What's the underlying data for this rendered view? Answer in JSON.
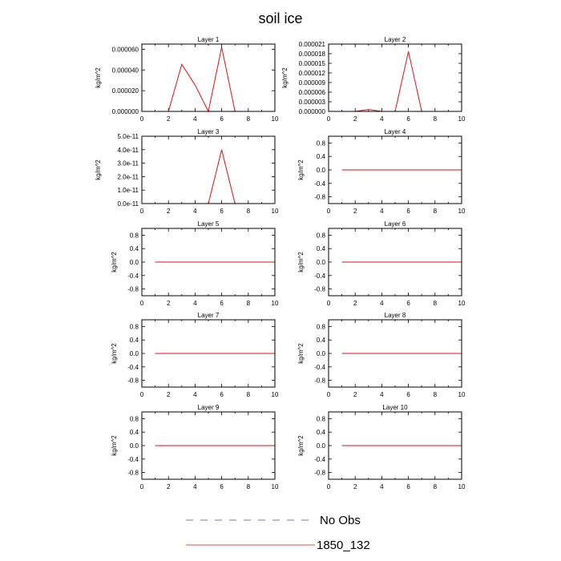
{
  "title": "soil ice",
  "chart_data": [
    {
      "type": "line",
      "title": "Layer 1",
      "ylabel": "kg/m^2",
      "xlim": [
        0,
        10
      ],
      "ylim": [
        0,
        6.5e-05
      ],
      "xticks": [
        "0",
        "2",
        "4",
        "6",
        "8",
        "10"
      ],
      "yticks": [
        {
          "value": 0,
          "label": "0.000000"
        },
        {
          "value": 2e-05,
          "label": "0.000020"
        },
        {
          "value": 4e-05,
          "label": "0.000040"
        },
        {
          "value": 6e-05,
          "label": "0.000060"
        }
      ],
      "series": [
        {
          "name": "1850_132",
          "x": [
            1,
            2,
            3,
            4,
            5,
            6,
            7,
            8,
            9,
            10
          ],
          "values": [
            0,
            0,
            4.55e-05,
            2.55e-05,
            0,
            6.2e-05,
            0,
            0,
            0,
            0
          ]
        }
      ]
    },
    {
      "type": "line",
      "title": "Layer 2",
      "ylabel": "kg/m^2",
      "xlim": [
        0,
        10
      ],
      "ylim": [
        0,
        2.1e-05
      ],
      "xticks": [
        "0",
        "2",
        "4",
        "6",
        "8",
        "10"
      ],
      "yticks": [
        {
          "value": 0,
          "label": "0.000000"
        },
        {
          "value": 3e-06,
          "label": "0.000003"
        },
        {
          "value": 6e-06,
          "label": "0.000006"
        },
        {
          "value": 9e-06,
          "label": "0.000009"
        },
        {
          "value": 1.2e-05,
          "label": "0.000012"
        },
        {
          "value": 1.5e-05,
          "label": "0.000015"
        },
        {
          "value": 1.8e-05,
          "label": "0.000018"
        },
        {
          "value": 2.1e-05,
          "label": "0.000021"
        }
      ],
      "series": [
        {
          "name": "1850_132",
          "x": [
            1,
            2,
            3,
            4,
            5,
            6,
            7,
            8,
            9,
            10
          ],
          "values": [
            0,
            0,
            6e-07,
            0,
            0,
            1.87e-05,
            0,
            0,
            0,
            0
          ]
        }
      ]
    },
    {
      "type": "line",
      "title": "Layer 3",
      "ylabel": "kg/m^2",
      "xlim": [
        0,
        10
      ],
      "ylim": [
        0,
        5e-11
      ],
      "xticks": [
        "0",
        "2",
        "4",
        "6",
        "8",
        "10"
      ],
      "yticks": [
        {
          "value": 0,
          "label": "0.0e-11"
        },
        {
          "value": 1e-11,
          "label": "1.0e-11"
        },
        {
          "value": 2e-11,
          "label": "2.0e-11"
        },
        {
          "value": 3e-11,
          "label": "3.0e-11"
        },
        {
          "value": 4e-11,
          "label": "4.0e-11"
        },
        {
          "value": 5e-11,
          "label": "5.0e-11"
        }
      ],
      "series": [
        {
          "name": "1850_132",
          "x": [
            1,
            2,
            3,
            4,
            5,
            6,
            7,
            8,
            9,
            10
          ],
          "values": [
            0,
            0,
            0,
            0,
            0,
            4e-11,
            0,
            0,
            0,
            0
          ]
        }
      ]
    },
    {
      "type": "line",
      "title": "Layer 4",
      "ylabel": "kg/m^2",
      "xlim": [
        0,
        10
      ],
      "ylim": [
        -1,
        1
      ],
      "xticks": [
        "0",
        "2",
        "4",
        "6",
        "8",
        "10"
      ],
      "yticks": [
        {
          "value": -0.8,
          "label": "-0.8"
        },
        {
          "value": -0.4,
          "label": "-0.4"
        },
        {
          "value": 0,
          "label": "0.0"
        },
        {
          "value": 0.4,
          "label": "0.4"
        },
        {
          "value": 0.8,
          "label": "0.8"
        }
      ],
      "series": [
        {
          "name": "1850_132",
          "x": [
            1,
            2,
            3,
            4,
            5,
            6,
            7,
            8,
            9,
            10
          ],
          "values": [
            0,
            0,
            0,
            0,
            0,
            0,
            0,
            0,
            0,
            0
          ]
        }
      ]
    },
    {
      "type": "line",
      "title": "Layer 5",
      "ylabel": "kg/m^2",
      "xlim": [
        0,
        10
      ],
      "ylim": [
        -1,
        1
      ],
      "xticks": [
        "0",
        "2",
        "4",
        "6",
        "8",
        "10"
      ],
      "yticks": [
        {
          "value": -0.8,
          "label": "-0.8"
        },
        {
          "value": -0.4,
          "label": "-0.4"
        },
        {
          "value": 0,
          "label": "0.0"
        },
        {
          "value": 0.4,
          "label": "0.4"
        },
        {
          "value": 0.8,
          "label": "0.8"
        }
      ],
      "series": [
        {
          "name": "1850_132",
          "x": [
            1,
            2,
            3,
            4,
            5,
            6,
            7,
            8,
            9,
            10
          ],
          "values": [
            0,
            0,
            0,
            0,
            0,
            0,
            0,
            0,
            0,
            0
          ]
        }
      ]
    },
    {
      "type": "line",
      "title": "Layer 6",
      "ylabel": "kg/m^2",
      "xlim": [
        0,
        10
      ],
      "ylim": [
        -1,
        1
      ],
      "xticks": [
        "0",
        "2",
        "4",
        "6",
        "8",
        "10"
      ],
      "yticks": [
        {
          "value": -0.8,
          "label": "-0.8"
        },
        {
          "value": -0.4,
          "label": "-0.4"
        },
        {
          "value": 0,
          "label": "0.0"
        },
        {
          "value": 0.4,
          "label": "0.4"
        },
        {
          "value": 0.8,
          "label": "0.8"
        }
      ],
      "series": [
        {
          "name": "1850_132",
          "x": [
            1,
            2,
            3,
            4,
            5,
            6,
            7,
            8,
            9,
            10
          ],
          "values": [
            0,
            0,
            0,
            0,
            0,
            0,
            0,
            0,
            0,
            0
          ]
        }
      ]
    },
    {
      "type": "line",
      "title": "Layer 7",
      "ylabel": "kg/m^2",
      "xlim": [
        0,
        10
      ],
      "ylim": [
        -1,
        1
      ],
      "xticks": [
        "0",
        "2",
        "4",
        "6",
        "8",
        "10"
      ],
      "yticks": [
        {
          "value": -0.8,
          "label": "-0.8"
        },
        {
          "value": -0.4,
          "label": "-0.4"
        },
        {
          "value": 0,
          "label": "0.0"
        },
        {
          "value": 0.4,
          "label": "0.4"
        },
        {
          "value": 0.8,
          "label": "0.8"
        }
      ],
      "series": [
        {
          "name": "1850_132",
          "x": [
            1,
            2,
            3,
            4,
            5,
            6,
            7,
            8,
            9,
            10
          ],
          "values": [
            0,
            0,
            0,
            0,
            0,
            0,
            0,
            0,
            0,
            0
          ]
        }
      ]
    },
    {
      "type": "line",
      "title": "Layer 8",
      "ylabel": "kg/m^2",
      "xlim": [
        0,
        10
      ],
      "ylim": [
        -1,
        1
      ],
      "xticks": [
        "0",
        "2",
        "4",
        "6",
        "8",
        "10"
      ],
      "yticks": [
        {
          "value": -0.8,
          "label": "-0.8"
        },
        {
          "value": -0.4,
          "label": "-0.4"
        },
        {
          "value": 0,
          "label": "0.0"
        },
        {
          "value": 0.4,
          "label": "0.4"
        },
        {
          "value": 0.8,
          "label": "0.8"
        }
      ],
      "series": [
        {
          "name": "1850_132",
          "x": [
            1,
            2,
            3,
            4,
            5,
            6,
            7,
            8,
            9,
            10
          ],
          "values": [
            0,
            0,
            0,
            0,
            0,
            0,
            0,
            0,
            0,
            0
          ]
        }
      ]
    },
    {
      "type": "line",
      "title": "Layer 9",
      "ylabel": "kg/m^2",
      "xlim": [
        0,
        10
      ],
      "ylim": [
        -1,
        1
      ],
      "xticks": [
        "0",
        "2",
        "4",
        "6",
        "8",
        "10"
      ],
      "yticks": [
        {
          "value": -0.8,
          "label": "-0.8"
        },
        {
          "value": -0.4,
          "label": "-0.4"
        },
        {
          "value": 0,
          "label": "0.0"
        },
        {
          "value": 0.4,
          "label": "0.4"
        },
        {
          "value": 0.8,
          "label": "0.8"
        }
      ],
      "series": [
        {
          "name": "1850_132",
          "x": [
            1,
            2,
            3,
            4,
            5,
            6,
            7,
            8,
            9,
            10
          ],
          "values": [
            0,
            0,
            0,
            0,
            0,
            0,
            0,
            0,
            0,
            0
          ]
        }
      ]
    },
    {
      "type": "line",
      "title": "Layer 10",
      "ylabel": "kg/m^2",
      "xlim": [
        0,
        10
      ],
      "ylim": [
        -1,
        1
      ],
      "xticks": [
        "0",
        "2",
        "4",
        "6",
        "8",
        "10"
      ],
      "yticks": [
        {
          "value": -0.8,
          "label": "-0.8"
        },
        {
          "value": -0.4,
          "label": "-0.4"
        },
        {
          "value": 0,
          "label": "0.0"
        },
        {
          "value": 0.4,
          "label": "0.4"
        },
        {
          "value": 0.8,
          "label": "0.8"
        }
      ],
      "series": [
        {
          "name": "1850_132",
          "x": [
            1,
            2,
            3,
            4,
            5,
            6,
            7,
            8,
            9,
            10
          ],
          "values": [
            0,
            0,
            0,
            0,
            0,
            0,
            0,
            0,
            0,
            0
          ]
        }
      ]
    }
  ],
  "legend": [
    {
      "label": "No Obs",
      "color": "#4a4aa8",
      "style": "dashed"
    },
    {
      "label": "1850_132",
      "color": "#e01010",
      "style": "solid"
    }
  ],
  "colors": {
    "series": "#e01010",
    "axes": "#000000"
  }
}
